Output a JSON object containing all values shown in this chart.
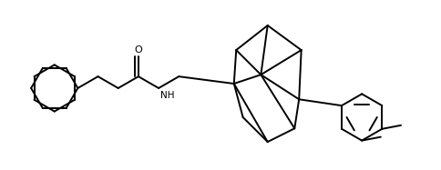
{
  "background_color": "#ffffff",
  "line_color": "#000000",
  "line_width": 1.4,
  "fig_width": 4.84,
  "fig_height": 1.87,
  "dpi": 100,
  "xlim": [
    0,
    9.5
  ],
  "ylim": [
    0,
    3.74
  ]
}
